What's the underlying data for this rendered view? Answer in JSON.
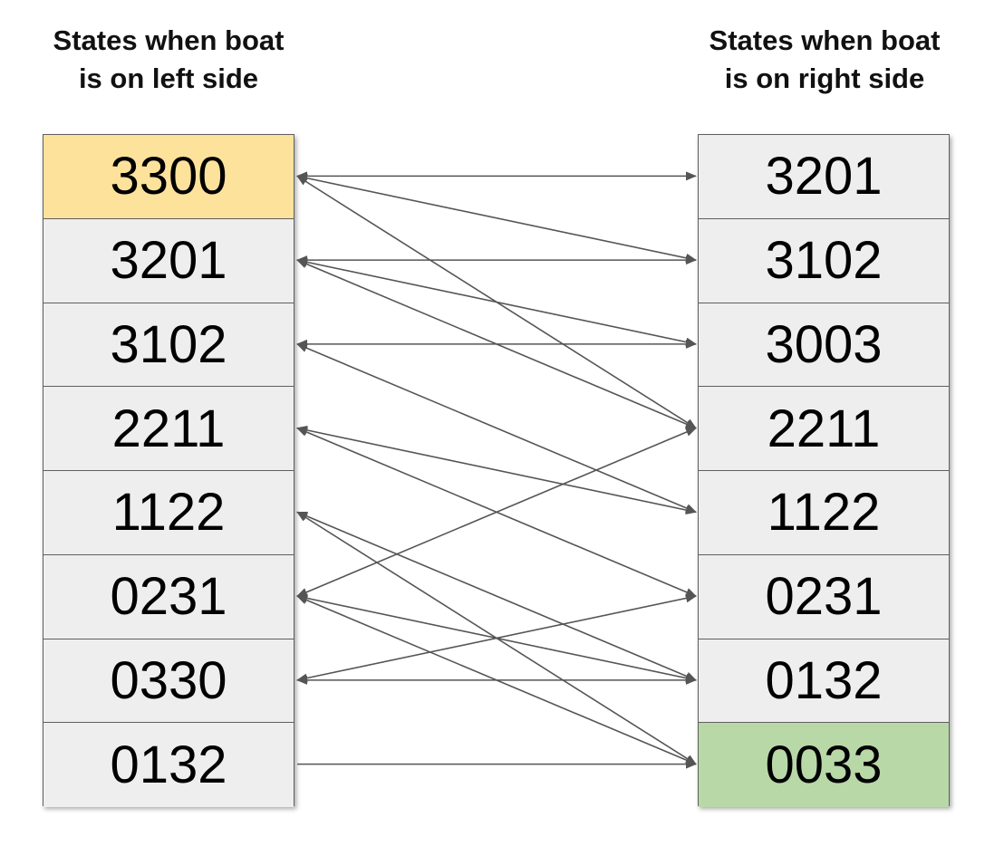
{
  "headings": {
    "left": [
      "States when boat",
      "is on left side"
    ],
    "right": [
      "States when boat",
      "is on right side"
    ]
  },
  "left_states": [
    "3300",
    "3201",
    "3102",
    "2211",
    "1122",
    "0231",
    "0330",
    "0132"
  ],
  "right_states": [
    "3201",
    "3102",
    "3003",
    "2211",
    "1122",
    "0231",
    "0132",
    "0033"
  ],
  "highlights": {
    "start": {
      "column": "left",
      "index": 0,
      "color": "#fde29c"
    },
    "goal": {
      "column": "right",
      "index": 7,
      "color": "#b8d8a8"
    }
  },
  "transitions": [
    {
      "from": "3300",
      "to": "3201",
      "bidirectional": true
    },
    {
      "from": "3300",
      "to": "3102",
      "bidirectional": true
    },
    {
      "from": "3300",
      "to": "2211",
      "bidirectional": true
    },
    {
      "from": "3201",
      "to": "3102",
      "bidirectional": true
    },
    {
      "from": "3201",
      "to": "3003",
      "bidirectional": true
    },
    {
      "from": "3201",
      "to": "2211",
      "bidirectional": true
    },
    {
      "from": "3102",
      "to": "3003",
      "bidirectional": true
    },
    {
      "from": "3102",
      "to": "1122",
      "bidirectional": true
    },
    {
      "from": "2211",
      "to": "1122",
      "bidirectional": true
    },
    {
      "from": "2211",
      "to": "0231",
      "bidirectional": true
    },
    {
      "from": "1122",
      "to": "0132",
      "bidirectional": true
    },
    {
      "from": "1122",
      "to": "0033",
      "bidirectional": true
    },
    {
      "from": "0231",
      "to": "2211",
      "bidirectional": true
    },
    {
      "from": "0231",
      "to": "0132",
      "bidirectional": true
    },
    {
      "from": "0231",
      "to": "0033",
      "bidirectional": true
    },
    {
      "from": "0330",
      "to": "0231",
      "bidirectional": true
    },
    {
      "from": "0330",
      "to": "0132",
      "bidirectional": true
    },
    {
      "from": "0132",
      "to": "0033",
      "bidirectional": false
    }
  ],
  "colors": {
    "arrow": "#555555",
    "cell": "#eeeeee",
    "border": "#5f5f5f"
  }
}
